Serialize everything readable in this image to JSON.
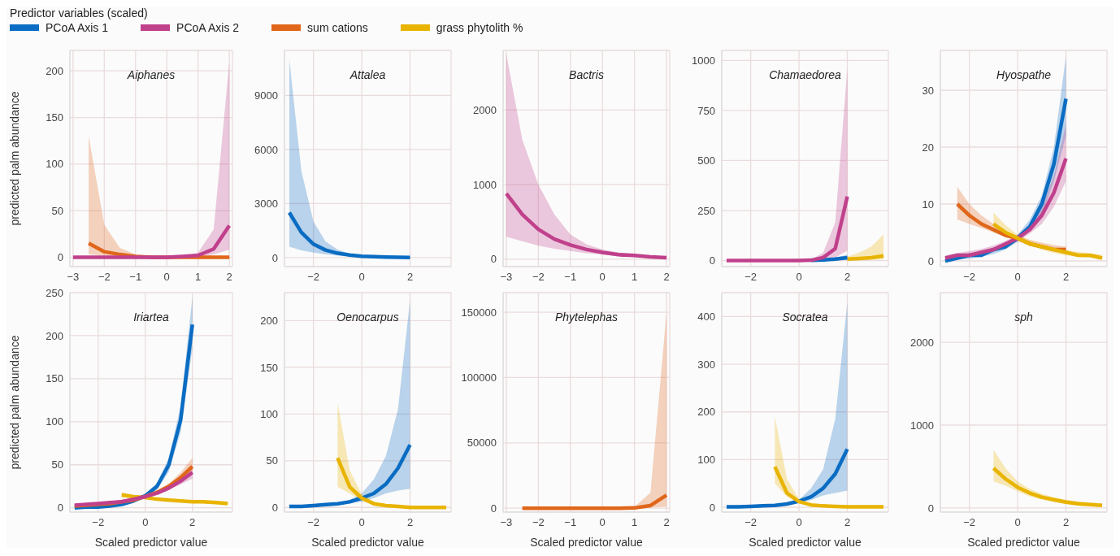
{
  "chart_data": [
    {
      "type": "line",
      "title": "Aiphanes",
      "ylabel": "predicted palm abundance",
      "xlim": [
        -3.1,
        2.1
      ],
      "xticks": [
        -3,
        -2,
        -1,
        0,
        1,
        2
      ],
      "ylim": [
        -10,
        222
      ],
      "yticks": [
        0,
        50,
        100,
        150,
        200
      ],
      "grid": true,
      "series": [
        {
          "color": "#e0661a",
          "x": [
            -2.5,
            -2,
            -1.5,
            -1,
            -0.5,
            0,
            0.5,
            1,
            1.5,
            2
          ],
          "values": [
            15,
            6,
            3,
            1,
            0,
            0,
            0,
            0,
            0,
            0
          ],
          "lower": [
            3,
            1.5,
            0.8,
            0.3,
            0.1,
            0.1,
            0,
            0,
            0,
            0
          ],
          "upper": [
            130,
            35,
            10,
            3,
            1.5,
            1,
            1,
            1,
            1,
            1
          ]
        },
        {
          "color": "#c0408c",
          "x": [
            -3,
            -2.5,
            -2,
            -1.5,
            -1,
            -0.5,
            0,
            0.5,
            1,
            1.5,
            2
          ],
          "values": [
            0,
            0,
            0,
            0,
            0,
            0,
            0,
            1,
            2,
            9,
            34
          ],
          "lower": [
            0,
            0,
            0,
            0,
            0,
            0,
            0,
            0.1,
            0.5,
            3,
            8
          ],
          "upper": [
            0,
            0,
            0,
            0,
            0,
            0,
            0.5,
            1.5,
            5,
            30,
            210
          ]
        }
      ]
    },
    {
      "type": "line",
      "title": "Attalea",
      "xlim": [
        -3.2,
        3.7
      ],
      "xticks": [
        -2,
        0,
        2
      ],
      "ylim": [
        -500,
        11500
      ],
      "yticks": [
        0,
        3000,
        6000,
        9000
      ],
      "grid": true,
      "series": [
        {
          "color": "#0a6cc2",
          "x": [
            -3,
            -2.5,
            -2,
            -1.5,
            -1,
            -0.5,
            0,
            0.5,
            1,
            1.5,
            2
          ],
          "values": [
            2500,
            1400,
            750,
            420,
            240,
            140,
            80,
            50,
            30,
            20,
            10
          ],
          "lower": [
            600,
            400,
            280,
            180,
            120,
            80,
            50,
            30,
            20,
            12,
            6
          ],
          "upper": [
            11000,
            4800,
            2000,
            900,
            450,
            220,
            120,
            80,
            60,
            50,
            40
          ]
        }
      ]
    },
    {
      "type": "line",
      "title": "Bactris",
      "xlim": [
        -3.1,
        2.1
      ],
      "xticks": [
        -3,
        -2,
        -1,
        0,
        1,
        2
      ],
      "ylim": [
        -100,
        2800
      ],
      "yticks": [
        0,
        1000,
        2000
      ],
      "grid": true,
      "series": [
        {
          "color": "#c0408c",
          "x": [
            -3,
            -2.5,
            -2,
            -1.5,
            -1,
            -0.5,
            0,
            0.5,
            1,
            1.5,
            2
          ],
          "values": [
            880,
            600,
            400,
            270,
            190,
            130,
            90,
            60,
            50,
            30,
            20
          ],
          "lower": [
            300,
            240,
            180,
            140,
            110,
            80,
            60,
            40,
            30,
            20,
            12
          ],
          "upper": [
            2750,
            1600,
            1000,
            600,
            330,
            200,
            130,
            90,
            65,
            45,
            30
          ]
        }
      ]
    },
    {
      "type": "line",
      "title": "Chamaedorea",
      "xlim": [
        -3.2,
        3.7
      ],
      "xticks": [
        -2,
        0,
        2
      ],
      "ylim": [
        -30,
        1050
      ],
      "yticks": [
        0,
        250,
        500,
        750,
        1000
      ],
      "grid": true,
      "series": [
        {
          "color": "#e8b400",
          "x": [
            2,
            2.5,
            3,
            3.5
          ],
          "values": [
            8,
            11,
            15,
            24
          ],
          "lower": [
            3,
            4,
            5,
            6
          ],
          "upper": [
            20,
            40,
            70,
            130
          ]
        },
        {
          "color": "#0a6cc2",
          "x": [
            0.5,
            1,
            1.5,
            2
          ],
          "values": [
            1,
            3,
            8,
            15
          ],
          "lower": [
            0,
            1,
            2,
            4
          ],
          "upper": [
            3,
            7,
            15,
            30
          ]
        },
        {
          "color": "#c0408c",
          "x": [
            -3,
            -2.5,
            -2,
            -1.5,
            -1,
            -0.5,
            0,
            0.5,
            1,
            1.5,
            2
          ],
          "values": [
            0,
            0,
            0,
            0,
            0,
            0,
            0,
            2,
            15,
            60,
            320
          ],
          "lower": [
            0,
            0,
            0,
            0,
            0,
            0,
            0,
            0,
            4,
            15,
            50
          ],
          "upper": [
            0,
            0,
            0,
            0,
            0,
            0,
            1,
            6,
            40,
            190,
            960
          ]
        }
      ]
    },
    {
      "type": "line",
      "title": "Hyospathe",
      "legend": "top left",
      "legend_title": "Predictor variables (scaled)",
      "xlim": [
        -3.2,
        3.7
      ],
      "xticks": [
        -2,
        0,
        2
      ],
      "ylim": [
        -1,
        37
      ],
      "yticks": [
        0,
        10,
        20,
        30
      ],
      "grid": true,
      "series": [
        {
          "name": "PCoA Axis 1",
          "color": "#0a6cc2",
          "x": [
            -3,
            -2.5,
            -2,
            -1.5,
            -1,
            -0.5,
            0,
            0.5,
            1,
            1.5,
            2
          ],
          "values": [
            0,
            0.5,
            1,
            1,
            2,
            2.5,
            4,
            6,
            10,
            17,
            28.5
          ],
          "lower": [
            0.1,
            0.2,
            0.4,
            0.7,
            1.2,
            2,
            3.4,
            5.2,
            8,
            14,
            22
          ],
          "upper": [
            0.4,
            0.7,
            1.1,
            1.6,
            2.3,
            3.2,
            4.6,
            7.2,
            11.5,
            20,
            36
          ]
        },
        {
          "name": "PCoA Axis 2",
          "color": "#c0408c",
          "x": [
            -3,
            -2.5,
            -2,
            -1.5,
            -1,
            -0.5,
            0,
            0.5,
            1,
            1.5,
            2
          ],
          "values": [
            0.5,
            1,
            1,
            1.5,
            2,
            3,
            4,
            5.5,
            8,
            12,
            18
          ],
          "lower": [
            0.2,
            0.4,
            0.7,
            1,
            1.6,
            2.4,
            3.4,
            4.8,
            6.5,
            9.5,
            14
          ],
          "upper": [
            1,
            1.4,
            1.7,
            2.1,
            2.7,
            3.5,
            4.6,
            6.4,
            9.5,
            15,
            24
          ]
        },
        {
          "name": "sum cations",
          "color": "#e0661a",
          "x": [
            -2.5,
            -2,
            -1.5,
            -1,
            -0.5,
            0,
            0.5,
            1,
            1.5,
            2
          ],
          "values": [
            10,
            8,
            6.5,
            5.5,
            4.5,
            4,
            3,
            2.5,
            2,
            2
          ],
          "lower": [
            7.3,
            6.5,
            5.8,
            5,
            4.2,
            3.5,
            2.8,
            2.2,
            1.7,
            1.2
          ],
          "upper": [
            13,
            10,
            8,
            6.5,
            5.2,
            4.4,
            3.7,
            3.2,
            2.8,
            2.5
          ]
        },
        {
          "name": "grass phytolith %",
          "color": "#e8b400",
          "x": [
            -1,
            -0.5,
            0,
            0.5,
            1,
            1.5,
            2,
            2.5,
            3,
            3.5
          ],
          "values": [
            6.5,
            5,
            4,
            3,
            2.5,
            2,
            1.5,
            1,
            1,
            0.5
          ],
          "lower": [
            5,
            4.3,
            3.5,
            2.7,
            2,
            1.4,
            1,
            0.7,
            0.5,
            0.3
          ],
          "upper": [
            8.5,
            6.3,
            4.6,
            3.6,
            2.9,
            2.3,
            1.9,
            1.6,
            1.3,
            1.1
          ]
        }
      ]
    },
    {
      "type": "line",
      "title": "Iriartea",
      "ylabel": "predicted palm abundance",
      "xlabel": "Scaled predictor value",
      "xlim": [
        -3.2,
        3.7
      ],
      "xticks": [
        -2,
        0,
        2
      ],
      "ylim": [
        -5,
        250
      ],
      "yticks": [
        0,
        50,
        100,
        150,
        200,
        250
      ],
      "grid": true,
      "series": [
        {
          "color": "#e8b400",
          "x": [
            -1,
            -0.5,
            0,
            0.5,
            1,
            1.5,
            2,
            2.5,
            3,
            3.5
          ],
          "values": [
            15,
            13,
            12,
            10,
            9,
            8,
            7,
            7,
            6,
            5
          ],
          "lower": [
            12,
            11,
            10,
            9,
            8,
            7,
            6,
            5,
            4.5,
            4
          ],
          "upper": [
            18,
            15,
            13,
            11,
            10,
            9,
            8,
            7.5,
            7,
            6.5
          ]
        },
        {
          "color": "#0a6cc2",
          "x": [
            -3,
            -2.5,
            -2,
            -1.5,
            -1,
            -0.5,
            0,
            0.5,
            1,
            1.5,
            2
          ],
          "values": [
            0,
            1,
            1,
            2,
            4,
            8,
            14,
            25,
            50,
            102,
            213
          ],
          "lower": [
            0,
            0.3,
            0.7,
            1.5,
            3,
            6,
            12,
            21,
            42,
            88,
            185
          ],
          "upper": [
            0.5,
            1,
            1.5,
            3,
            5,
            10,
            16,
            29,
            58,
            118,
            245
          ]
        },
        {
          "color": "#e0661a",
          "x": [
            -3,
            -2.5,
            -2,
            -1.5,
            -1,
            -0.5,
            0,
            0.5,
            1,
            1.5,
            2
          ],
          "values": [
            2,
            3,
            4,
            5,
            7,
            9,
            13,
            18,
            25,
            35,
            48
          ],
          "lower": [
            1,
            2,
            3,
            4,
            6,
            8,
            12,
            16,
            22,
            30,
            40
          ],
          "upper": [
            3,
            4,
            5,
            6,
            8,
            10,
            14,
            20,
            28,
            41,
            58
          ]
        },
        {
          "color": "#c0408c",
          "x": [
            -3,
            -2.5,
            -2,
            -1.5,
            -1,
            -0.5,
            0,
            0.5,
            1,
            1.5,
            2
          ],
          "values": [
            3,
            4,
            5,
            6,
            7,
            10,
            13,
            17,
            23,
            31,
            41
          ],
          "lower": [
            1.5,
            2.5,
            3.5,
            4.5,
            6,
            8.5,
            12,
            15.5,
            21,
            27,
            34
          ],
          "upper": [
            3.5,
            4.5,
            5.5,
            6.5,
            8,
            10.5,
            14,
            18.5,
            25,
            35,
            48
          ]
        }
      ]
    },
    {
      "type": "line",
      "title": "Oenocarpus",
      "xlabel": "Scaled predictor value",
      "xlim": [
        -3.2,
        3.7
      ],
      "xticks": [
        -2,
        0,
        2
      ],
      "ylim": [
        -5,
        230
      ],
      "yticks": [
        0,
        50,
        100,
        150,
        200
      ],
      "grid": true,
      "series": [
        {
          "color": "#0a6cc2",
          "x": [
            -3,
            -2.5,
            -2,
            -1.5,
            -1,
            -0.5,
            0,
            0.5,
            1,
            1.5,
            2
          ],
          "values": [
            1,
            1,
            2,
            3,
            4,
            6,
            10,
            15,
            25,
            42,
            67
          ],
          "lower": [
            0.3,
            0.6,
            1,
            1.8,
            3,
            4.5,
            6,
            10,
            15,
            18,
            20
          ],
          "upper": [
            0.8,
            1.5,
            2.2,
            3.5,
            5.5,
            8,
            15,
            30,
            55,
            105,
            222
          ]
        },
        {
          "color": "#e8b400",
          "x": [
            -1,
            -0.5,
            0,
            0.5,
            1,
            1.5,
            2,
            2.5,
            3,
            3.5
          ],
          "values": [
            53,
            22,
            10,
            4,
            2,
            1,
            0,
            0,
            0,
            0
          ],
          "lower": [
            22,
            15,
            7,
            3,
            1.3,
            0.6,
            0.3,
            0.2,
            0.1,
            0.1
          ],
          "upper": [
            112,
            40,
            14,
            6,
            3,
            1.8,
            1,
            0.8,
            0.7,
            0.6
          ]
        }
      ]
    },
    {
      "type": "line",
      "title": "Phytelephas",
      "xlabel": "Scaled predictor value",
      "xlim": [
        -3.1,
        2.1
      ],
      "xticks": [
        -3,
        -2,
        -1,
        0,
        1,
        2
      ],
      "ylim": [
        -3000,
        165000
      ],
      "yticks": [
        0,
        50000,
        100000,
        150000
      ],
      "grid": true,
      "series": [
        {
          "color": "#e0661a",
          "x": [
            -2.5,
            -2,
            -1.5,
            -1,
            -0.5,
            0,
            0.5,
            1,
            1.5,
            2
          ],
          "values": [
            0,
            0,
            0,
            0,
            0,
            0,
            0,
            200,
            2000,
            10000
          ],
          "lower": [
            0,
            0,
            0,
            0,
            0,
            0,
            0,
            50,
            500,
            1000
          ],
          "upper": [
            0,
            0,
            0,
            0,
            0,
            0,
            0,
            1000,
            12000,
            150000
          ]
        }
      ]
    },
    {
      "type": "line",
      "title": "Socratea",
      "xlabel": "Scaled predictor value",
      "xlim": [
        -3.2,
        3.7
      ],
      "xticks": [
        -2,
        0,
        2
      ],
      "ylim": [
        -10,
        450
      ],
      "yticks": [
        0,
        100,
        200,
        300,
        400
      ],
      "grid": true,
      "series": [
        {
          "color": "#0a6cc2",
          "x": [
            -3,
            -2.5,
            -2,
            -1.5,
            -1,
            -0.5,
            0,
            0.5,
            1,
            1.5,
            2
          ],
          "values": [
            1,
            1,
            2,
            3,
            4,
            7,
            13,
            22,
            40,
            70,
            122
          ],
          "lower": [
            0.3,
            0.6,
            1,
            1.8,
            3,
            5,
            9,
            15,
            25,
            30,
            35
          ],
          "upper": [
            0.8,
            1.5,
            2.2,
            3.5,
            5.5,
            9,
            16,
            40,
            80,
            185,
            430
          ]
        },
        {
          "color": "#e8b400",
          "x": [
            -1,
            -0.5,
            0,
            0.5,
            1,
            1.5,
            2,
            2.5,
            3,
            3.5
          ],
          "values": [
            85,
            30,
            12,
            5,
            3,
            2,
            1,
            1,
            1,
            1
          ],
          "lower": [
            50,
            22,
            9,
            3.5,
            1.5,
            0.8,
            0.5,
            0.4,
            0.3,
            0.2
          ],
          "upper": [
            190,
            60,
            17,
            7,
            4,
            2.5,
            1.8,
            1.5,
            1.2,
            1
          ]
        }
      ]
    },
    {
      "type": "line",
      "title": "sph",
      "xlabel": "Scaled predictor value",
      "xlim": [
        -3.2,
        3.7
      ],
      "xticks": [
        -2,
        0,
        2
      ],
      "ylim": [
        -50,
        2600
      ],
      "yticks": [
        0,
        1000,
        2000
      ],
      "grid": true,
      "series": [
        {
          "color": "#e8b400",
          "x": [
            -1,
            -0.5,
            0,
            0.5,
            1,
            1.5,
            2,
            2.5,
            3,
            3.5
          ],
          "values": [
            480,
            350,
            250,
            180,
            130,
            100,
            70,
            50,
            40,
            30
          ],
          "lower": [
            320,
            270,
            200,
            140,
            100,
            70,
            50,
            35,
            25,
            18
          ],
          "upper": [
            700,
            480,
            320,
            230,
            170,
            130,
            100,
            80,
            65,
            55
          ]
        }
      ]
    }
  ]
}
